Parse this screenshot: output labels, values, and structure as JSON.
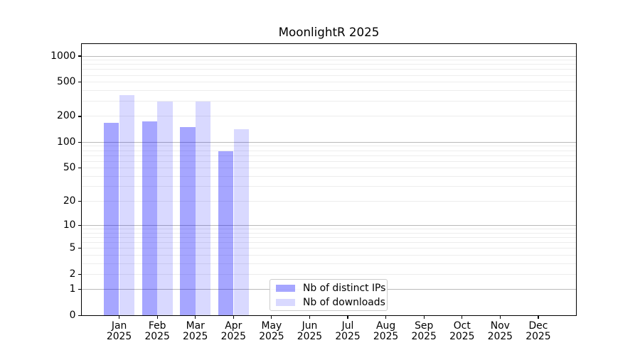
{
  "title": "MoonlightR 2025",
  "colors": {
    "bar_distinct_ips": "rgba(0,0,255,0.35)",
    "bar_downloads": "rgba(0,0,255,0.15)",
    "grid_major": "#b9b9b9",
    "grid_minor": "#ededed",
    "axis_line": "#000000",
    "legend_border": "#cccccc"
  },
  "legend": {
    "items": [
      {
        "label": "Nb of distinct IPs",
        "color_key": "bar_distinct_ips"
      },
      {
        "label": "Nb of downloads",
        "color_key": "bar_downloads"
      }
    ]
  },
  "x_axis": {
    "months": [
      "Jan",
      "Feb",
      "Mar",
      "Apr",
      "May",
      "Jun",
      "Jul",
      "Aug",
      "Sep",
      "Oct",
      "Nov",
      "Dec"
    ],
    "year": "2025"
  },
  "y_axis": {
    "tick_labels": [
      "0",
      "1",
      "2",
      "5",
      "10",
      "20",
      "50",
      "100",
      "200",
      "500",
      "1000"
    ]
  },
  "chart_data": {
    "type": "bar",
    "title": "MoonlightR 2025",
    "categories": [
      "Jan 2025",
      "Feb 2025",
      "Mar 2025",
      "Apr 2025",
      "May 2025",
      "Jun 2025",
      "Jul 2025",
      "Aug 2025",
      "Sep 2025",
      "Oct 2025",
      "Nov 2025",
      "Dec 2025"
    ],
    "series": [
      {
        "name": "Nb of distinct IPs",
        "values": [
          170,
          176,
          149,
          78,
          null,
          null,
          null,
          null,
          null,
          null,
          null,
          null
        ]
      },
      {
        "name": "Nb of downloads",
        "values": [
          355,
          300,
          299,
          141,
          null,
          null,
          null,
          null,
          null,
          null,
          null,
          null
        ]
      }
    ],
    "yscale": "log1p",
    "yticks": [
      0,
      1,
      2,
      5,
      10,
      20,
      50,
      100,
      200,
      500,
      1000
    ],
    "ylim": [
      0,
      1407
    ],
    "grid": true,
    "legend_position": "lower center inside plot",
    "xlabel": "",
    "ylabel": ""
  }
}
